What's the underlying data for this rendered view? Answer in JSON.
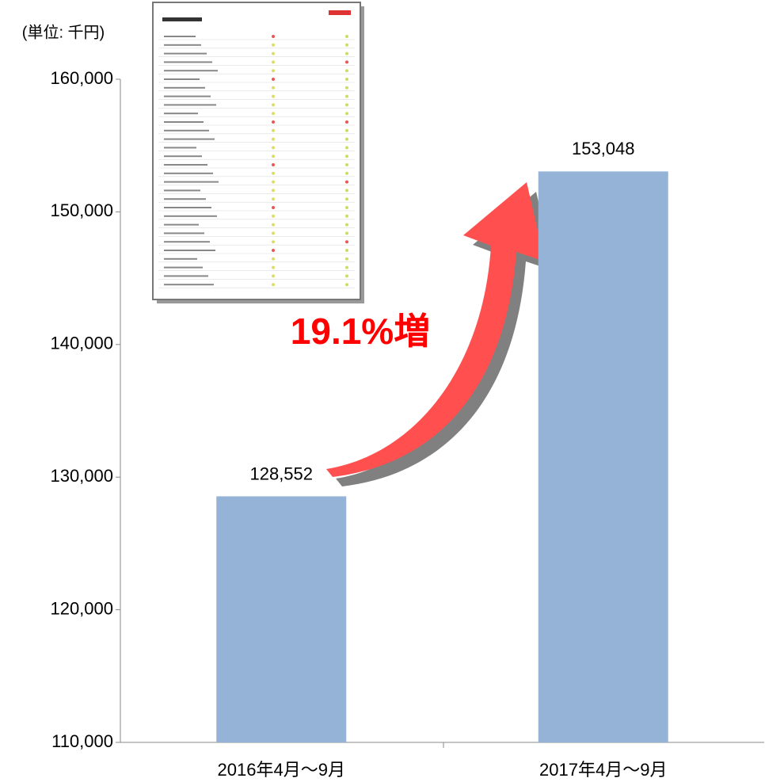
{
  "chart_data": {
    "type": "bar",
    "unit_label": "(単位: 千円)",
    "categories": [
      "2016年4月〜9月",
      "2017年4月〜9月"
    ],
    "values": [
      128552,
      153048
    ],
    "value_labels": [
      "128,552",
      "153,048"
    ],
    "color": "#95b3d7",
    "ylim": [
      110000,
      160000
    ],
    "yticks": [
      {
        "value": 110000,
        "label": "110,000"
      },
      {
        "value": 120000,
        "label": "120,000"
      },
      {
        "value": 130000,
        "label": "130,000"
      },
      {
        "value": 140000,
        "label": "140,000"
      },
      {
        "value": 150000,
        "label": "150,000"
      },
      {
        "value": 160000,
        "label": "160,000"
      }
    ],
    "annotation": "19.1%増",
    "grid": false
  }
}
